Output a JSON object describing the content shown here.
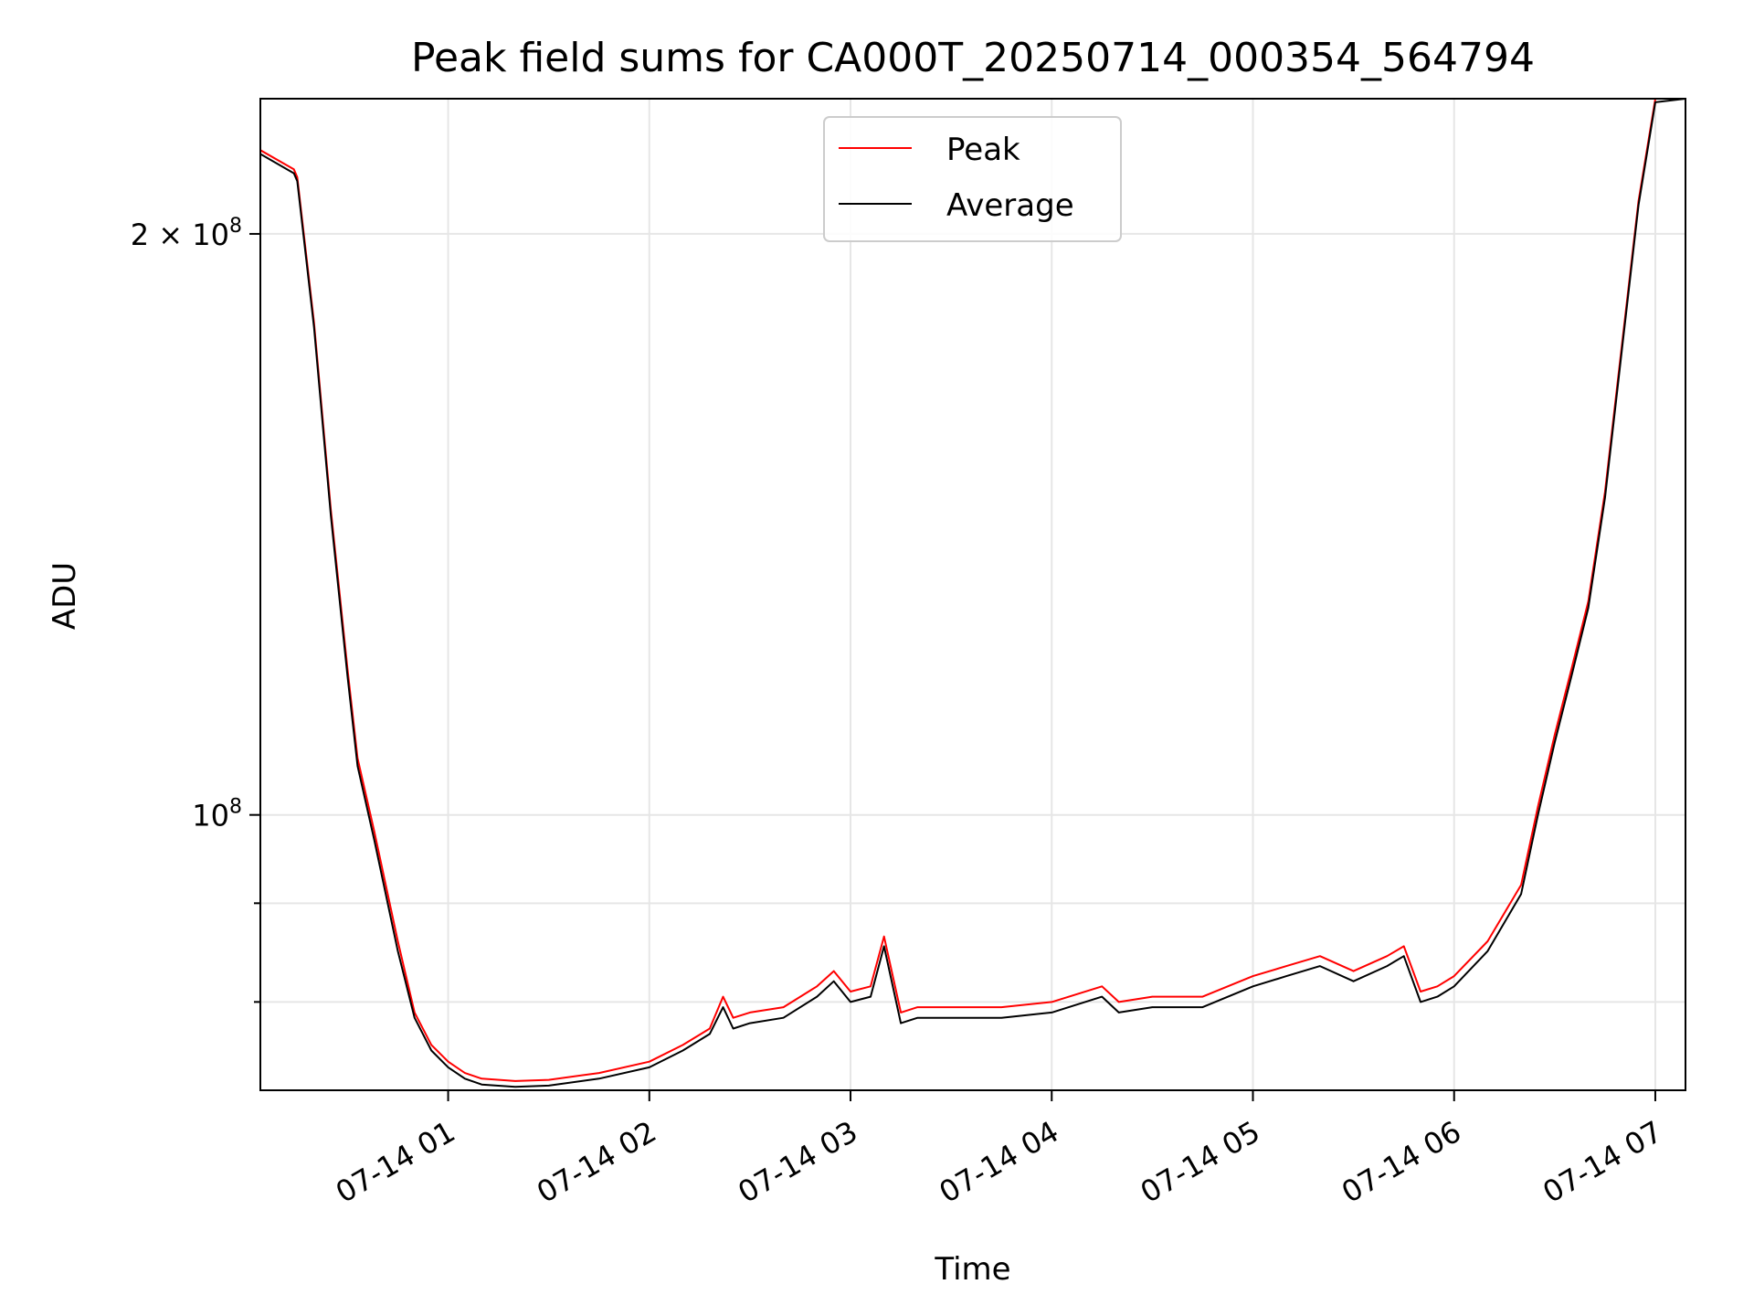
{
  "chart_data": {
    "type": "line",
    "title": "Peak field sums for CA000T_20250714_000354_564794",
    "xlabel": "Time",
    "ylabel": "ADU",
    "x_axis_type": "time",
    "y_scale": "log",
    "xlim": [
      "07-14 00:04",
      "07-14 07:09"
    ],
    "ylim": [
      72000000,
      235000000
    ],
    "x_tick_labels": [
      "07-14 01",
      "07-14 02",
      "07-14 03",
      "07-14 04",
      "07-14 05",
      "07-14 06",
      "07-14 07"
    ],
    "x_ticks": [
      "07-14 01:00",
      "07-14 02:00",
      "07-14 03:00",
      "07-14 04:00",
      "07-14 05:00",
      "07-14 06:00",
      "07-14 07:00"
    ],
    "y_ticks": [
      {
        "value": 100000000,
        "label_base": "10",
        "label_exp": "8",
        "label_coeff": ""
      },
      {
        "value": 200000000,
        "label_base": "10",
        "label_exp": "8",
        "label_coeff": "2 × "
      }
    ],
    "y_minor_ticks": [
      80000000,
      90000000
    ],
    "grid": true,
    "legend": {
      "position": "upper center",
      "entries": [
        "Peak",
        "Average"
      ]
    },
    "series": [
      {
        "name": "Peak",
        "color": "#ff0000",
        "x": [
          "00:04",
          "00:14",
          "00:15",
          "00:20",
          "00:25",
          "00:30",
          "00:33",
          "00:38",
          "00:45",
          "00:50",
          "00:55",
          "01:00",
          "01:05",
          "01:10",
          "01:20",
          "01:30",
          "01:45",
          "02:00",
          "02:10",
          "02:18",
          "02:22",
          "02:25",
          "02:30",
          "02:40",
          "02:50",
          "02:55",
          "03:00",
          "03:06",
          "03:10",
          "03:15",
          "03:20",
          "03:25",
          "03:35",
          "03:45",
          "04:00",
          "04:15",
          "04:20",
          "04:30",
          "04:45",
          "05:00",
          "05:10",
          "05:20",
          "05:30",
          "05:40",
          "05:45",
          "05:50",
          "05:55",
          "06:00",
          "06:10",
          "06:20",
          "06:25",
          "06:30",
          "06:35",
          "06:40",
          "06:45",
          "06:50",
          "06:55",
          "07:00",
          "07:09"
        ],
        "y": [
          221000000,
          216000000,
          214000000,
          180000000,
          144000000,
          119000000,
          107000000,
          98000000,
          86000000,
          79000000,
          76000000,
          74500000,
          73500000,
          73000000,
          72800000,
          72900000,
          73500000,
          74500000,
          76000000,
          77500000,
          80500000,
          78500000,
          79000000,
          79500000,
          81500000,
          83000000,
          81000000,
          81500000,
          86500000,
          79000000,
          79500000,
          79500000,
          79500000,
          79500000,
          80000000,
          81500000,
          80000000,
          80500000,
          80500000,
          82500000,
          83500000,
          84500000,
          83000000,
          84500000,
          85500000,
          81000000,
          81500000,
          82500000,
          86000000,
          92000000,
          101000000,
          110000000,
          119000000,
          129000000,
          147000000,
          175000000,
          208000000,
          235000000,
          236000000
        ]
      },
      {
        "name": "Average",
        "color": "#000000",
        "x": [
          "00:04",
          "00:14",
          "00:15",
          "00:20",
          "00:25",
          "00:30",
          "00:33",
          "00:38",
          "00:45",
          "00:50",
          "00:55",
          "01:00",
          "01:05",
          "01:10",
          "01:20",
          "01:30",
          "01:45",
          "02:00",
          "02:10",
          "02:18",
          "02:22",
          "02:25",
          "02:30",
          "02:40",
          "02:50",
          "02:55",
          "03:00",
          "03:06",
          "03:10",
          "03:15",
          "03:20",
          "03:25",
          "03:35",
          "03:45",
          "04:00",
          "04:15",
          "04:20",
          "04:30",
          "04:45",
          "05:00",
          "05:10",
          "05:20",
          "05:30",
          "05:40",
          "05:45",
          "05:50",
          "05:55",
          "06:00",
          "06:10",
          "06:20",
          "06:25",
          "06:30",
          "06:35",
          "06:40",
          "06:45",
          "06:50",
          "06:55",
          "07:00",
          "07:09"
        ],
        "y": [
          220000000,
          215000000,
          213000000,
          179000000,
          143000000,
          118000000,
          106000000,
          97000000,
          85000000,
          78500000,
          75500000,
          74000000,
          73000000,
          72500000,
          72300000,
          72400000,
          73000000,
          74000000,
          75500000,
          77000000,
          79500000,
          77500000,
          78000000,
          78500000,
          80500000,
          82000000,
          80000000,
          80500000,
          85500000,
          78000000,
          78500000,
          78500000,
          78500000,
          78500000,
          79000000,
          80500000,
          79000000,
          79500000,
          79500000,
          81500000,
          82500000,
          83500000,
          82000000,
          83500000,
          84500000,
          80000000,
          80500000,
          81500000,
          85000000,
          91000000,
          100000000,
          109000000,
          118000000,
          128000000,
          146000000,
          174000000,
          207000000,
          234000000,
          235000000
        ]
      }
    ]
  }
}
